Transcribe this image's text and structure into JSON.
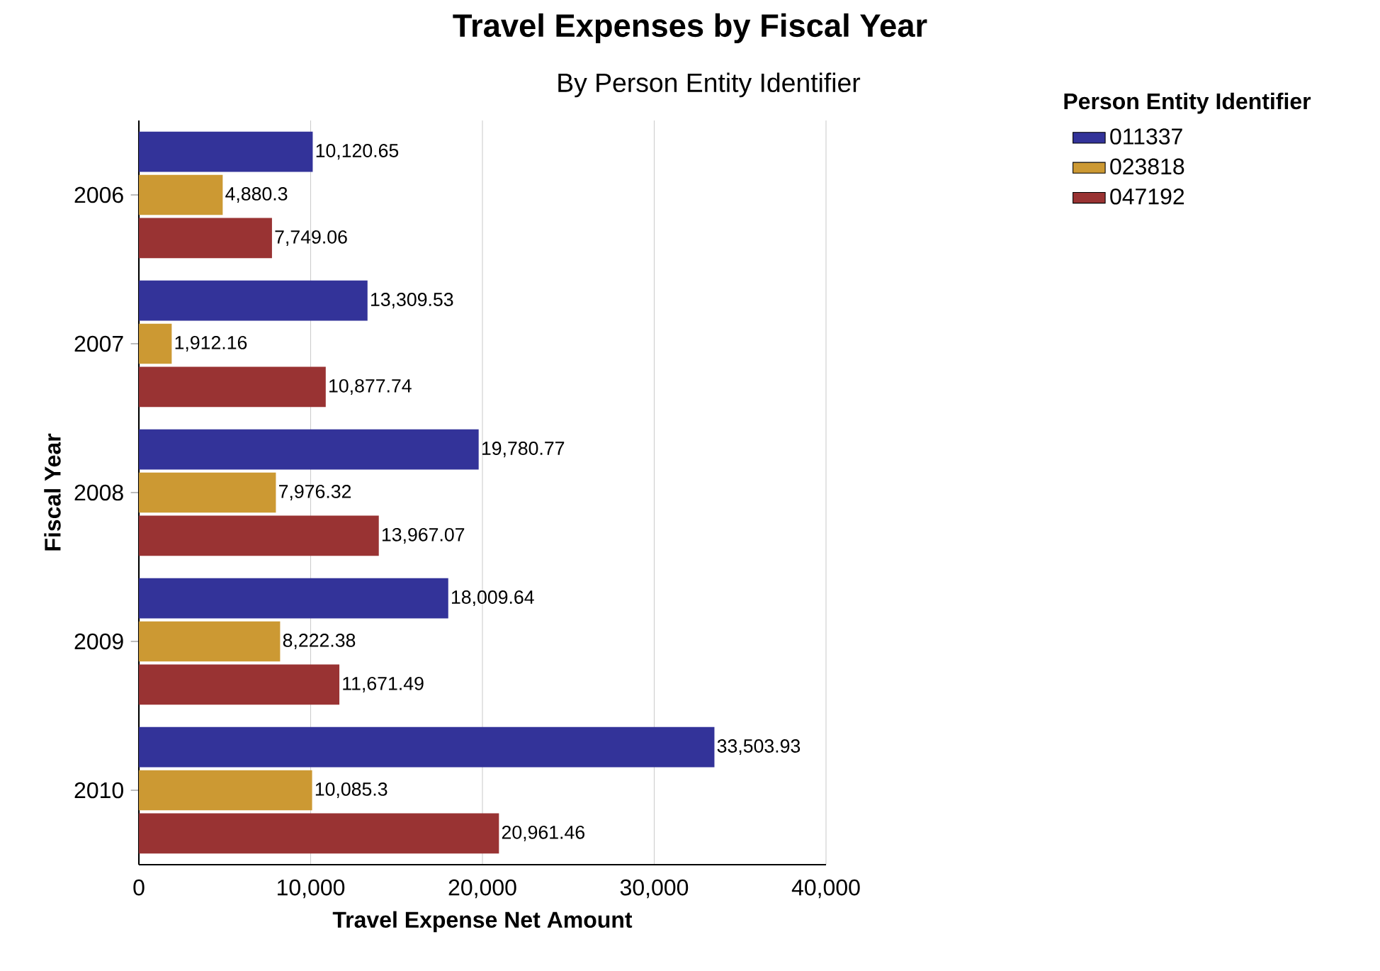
{
  "chart_data": {
    "type": "bar",
    "orientation": "horizontal",
    "title": "Travel Expenses by Fiscal Year",
    "subtitle": "By Person Entity Identifier",
    "xlabel": "Travel Expense Net Amount",
    "ylabel": "Fiscal Year",
    "legend_title": "Person Entity Identifier",
    "categories": [
      "2006",
      "2007",
      "2008",
      "2009",
      "2010"
    ],
    "series": [
      {
        "name": "011337",
        "color": "#333399",
        "values": [
          10120.65,
          13309.53,
          19780.77,
          18009.64,
          33503.93
        ],
        "value_labels": [
          "10,120.65",
          "13,309.53",
          "19,780.77",
          "18,009.64",
          "33,503.93"
        ]
      },
      {
        "name": "023818",
        "color": "#cc9933",
        "values": [
          4880.3,
          1912.16,
          7976.32,
          8222.38,
          10085.3
        ],
        "value_labels": [
          "4,880.3",
          "1,912.16",
          "7,976.32",
          "8,222.38",
          "10,085.3"
        ]
      },
      {
        "name": "047192",
        "color": "#993333",
        "values": [
          7749.06,
          10877.74,
          13967.07,
          11671.49,
          20961.46
        ],
        "value_labels": [
          "7,749.06",
          "10,877.74",
          "13,967.07",
          "11,671.49",
          "20,961.46"
        ]
      }
    ],
    "xlim": [
      0,
      40000
    ],
    "xticks": [
      0,
      {
        "value": 10000,
        "label": "10,000"
      },
      {
        "value": 20000,
        "label": "20,000"
      },
      {
        "value": 30000,
        "label": "30,000"
      },
      {
        "value": 40000,
        "label": "40,000"
      }
    ],
    "grid": "x",
    "legend": "top right"
  }
}
